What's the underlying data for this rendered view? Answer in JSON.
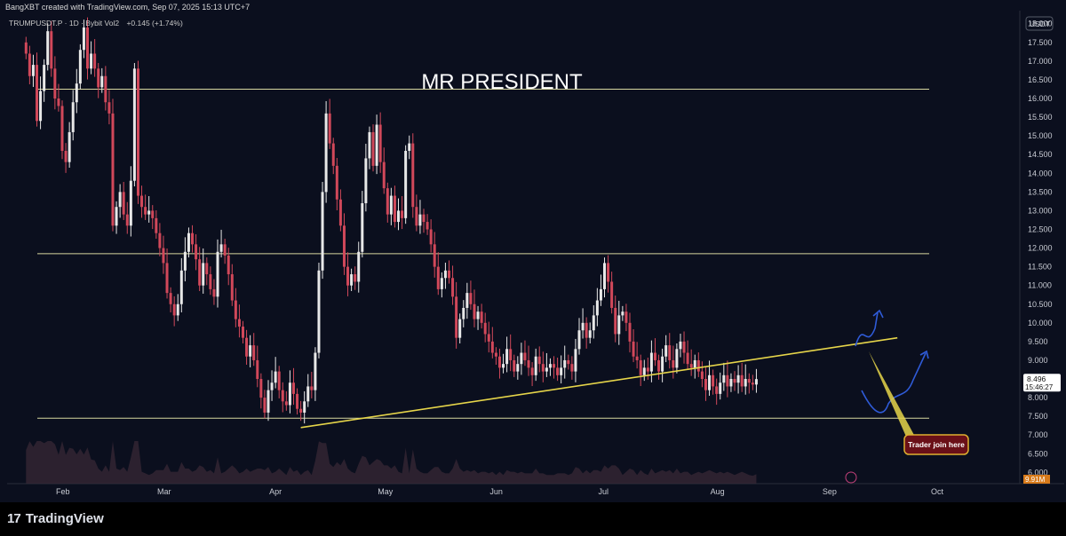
{
  "header": {
    "created_by": "BangXBT created with TradingView.com, Sep 07, 2025 15:13 UTC+7",
    "symbol_line": "TRUMPUSDT.P · 1D · Bybit  Vol2",
    "change": "+0.145 (+1.74%)"
  },
  "brand": {
    "name": "TradingView",
    "mark": "17"
  },
  "colors": {
    "background": "#0b0f1e",
    "up": "#e8e8e8",
    "down": "#d1485a",
    "trendline": "#e6d54a",
    "level": "#d8d8a0",
    "arrow": "#2f5bd8",
    "callout_bg": "#6a1018",
    "callout_border": "#e0b030"
  },
  "chart_data": {
    "type": "candlestick",
    "title": "MR PRESIDENT",
    "currency": "USDT",
    "y_ticks": [
      "18.000",
      "17.500",
      "17.000",
      "16.500",
      "16.000",
      "15.500",
      "15.000",
      "14.500",
      "14.000",
      "13.500",
      "13.000",
      "12.500",
      "12.000",
      "11.500",
      "11.000",
      "10.500",
      "10.000",
      "9.500",
      "9.000",
      "8.500",
      "8.000",
      "7.500",
      "7.000",
      "6.500",
      "6.000"
    ],
    "ylim": [
      5.7,
      18.35
    ],
    "x_ticks": [
      "Feb",
      "Mar",
      "Apr",
      "May",
      "Jun",
      "Jul",
      "Aug",
      "Sep",
      "Oct"
    ],
    "last_price": "8.496",
    "countdown": "15:46:27",
    "volume_label": "9.91M",
    "horizontal_levels": [
      16.25,
      11.85,
      7.45
    ],
    "trendline": {
      "from": [
        "2025-04-08",
        7.2
      ],
      "to": [
        "2025-09-20",
        9.6
      ]
    },
    "annotation": "Trader join here",
    "closes": [
      17.2,
      16.6,
      16.9,
      15.4,
      16.2,
      16.9,
      17.8,
      16.8,
      16.0,
      15.8,
      14.6,
      14.3,
      15.1,
      15.9,
      16.4,
      17.3,
      17.9,
      16.8,
      17.2,
      16.8,
      16.3,
      16.6,
      15.9,
      15.6,
      12.6,
      13.1,
      13.5,
      12.9,
      12.6,
      13.8,
      16.8,
      13.4,
      13.1,
      12.9,
      13.0,
      12.8,
      12.4,
      12.0,
      11.6,
      10.8,
      10.5,
      10.2,
      10.5,
      11.4,
      11.9,
      12.4,
      12.1,
      11.7,
      11.0,
      11.6,
      11.3,
      10.9,
      10.7,
      11.9,
      12.1,
      11.8,
      11.3,
      10.6,
      10.1,
      9.9,
      9.6,
      9.1,
      9.4,
      9.0,
      8.5,
      8.0,
      7.6,
      8.2,
      8.4,
      8.7,
      8.2,
      7.9,
      7.8,
      8.4,
      8.1,
      7.7,
      7.6,
      7.9,
      8.3,
      8.2,
      9.2,
      11.4,
      13.5,
      15.6,
      14.8,
      14.2,
      13.3,
      12.6,
      11.5,
      11.0,
      11.3,
      11.1,
      11.9,
      13.2,
      14.4,
      15.1,
      14.2,
      15.3,
      14.3,
      13.6,
      12.9,
      13.4,
      12.7,
      13.0,
      12.8,
      14.6,
      14.8,
      13.1,
      12.6,
      12.9,
      12.7,
      12.5,
      12.1,
      11.5,
      10.9,
      11.2,
      11.4,
      11.2,
      10.7,
      9.6,
      10.1,
      10.4,
      10.8,
      10.5,
      10.1,
      10.3,
      10.0,
      9.7,
      9.5,
      9.2,
      9.1,
      8.8,
      8.9,
      9.3,
      9.0,
      8.7,
      8.9,
      9.2,
      9.0,
      8.8,
      8.6,
      9.1,
      8.9,
      8.7,
      8.8,
      8.9,
      8.8,
      8.6,
      8.8,
      9.0,
      8.9,
      8.7,
      9.3,
      9.8,
      10.0,
      9.6,
      9.8,
      10.2,
      10.6,
      10.9,
      11.6,
      11.1,
      10.4,
      9.7,
      10.2,
      10.3,
      10.0,
      9.5,
      9.1,
      9.0,
      8.6,
      8.8,
      8.7,
      9.2,
      9.0,
      8.7,
      9.1,
      9.4,
      9.0,
      8.8,
      9.3,
      9.5,
      9.2,
      8.9,
      8.8,
      9.0,
      8.7,
      8.5,
      8.2,
      8.6,
      8.3,
      8.1,
      8.4,
      8.6,
      8.3,
      8.5,
      8.4,
      8.6,
      8.3,
      8.5,
      8.4,
      8.35,
      8.496
    ]
  }
}
